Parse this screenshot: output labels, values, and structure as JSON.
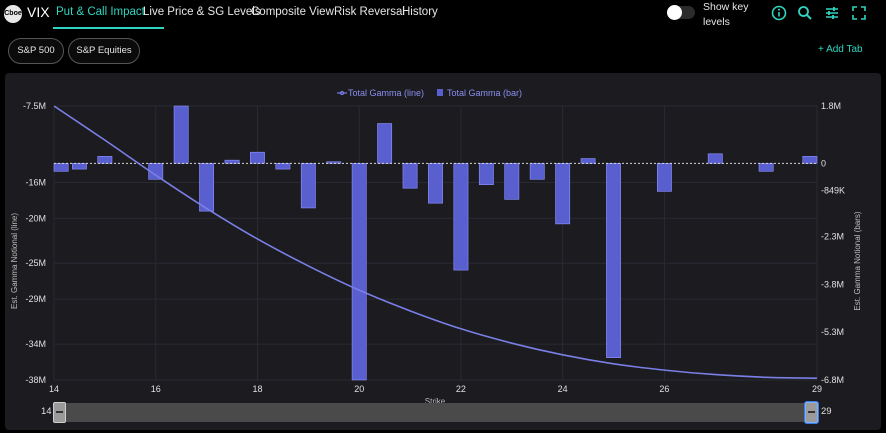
{
  "header": {
    "logo_text": "Cboe",
    "ticker": "VIX",
    "tabs": [
      {
        "label": "Put & Call Impact"
      },
      {
        "label": "Live Price & SG Levels"
      },
      {
        "label": "Composite View"
      },
      {
        "label": "Risk Reversal"
      },
      {
        "label": "History"
      }
    ],
    "active_tab": 0,
    "toggle_label": "Show key levels",
    "toggle_on": false,
    "icons": [
      "info-icon",
      "search-icon",
      "sliders-icon",
      "fullscreen-icon"
    ]
  },
  "filters": {
    "chips": [
      {
        "label": "S&P 500"
      },
      {
        "label": "S&P Equities"
      }
    ],
    "add_tab": "+ Add Tab"
  },
  "colors": {
    "accent": "#2fd5c0",
    "series": "#5a5fcf",
    "line": "#7a7fe6",
    "panel": "#1b1b20"
  },
  "chart_data": {
    "type": "bar+line",
    "legend": [
      {
        "label": "Total Gamma (line)",
        "marker": "line"
      },
      {
        "label": "Total Gamma (bar)",
        "marker": "bar"
      }
    ],
    "legend_position": "top-center",
    "xlabel": "Strike",
    "ylabel_left": "Est. Gamma Notional (line)",
    "ylabel_right": "Est. Gamma Notional (bars)",
    "xlim": [
      14,
      29
    ],
    "x_ticks": [
      {
        "v": 14,
        "label": "14"
      },
      {
        "v": 16,
        "label": "16"
      },
      {
        "v": 18,
        "label": "18"
      },
      {
        "v": 20,
        "label": "20"
      },
      {
        "v": 22,
        "label": "22"
      },
      {
        "v": 24,
        "label": "24"
      },
      {
        "v": 26,
        "label": "26"
      },
      {
        "v": 29,
        "label": "29"
      }
    ],
    "y_left_lim": [
      -38,
      -7.5
    ],
    "y_left_ticks": [
      {
        "v": -7.5,
        "label": "-7.5M"
      },
      {
        "v": -16,
        "label": "-16M"
      },
      {
        "v": -20,
        "label": "-20M"
      },
      {
        "v": -25,
        "label": "-25M"
      },
      {
        "v": -29,
        "label": "-29M"
      },
      {
        "v": -34,
        "label": "-34M"
      },
      {
        "v": -38,
        "label": "-38M"
      }
    ],
    "y_right_lim": [
      -6.8,
      1.8
    ],
    "y_right_ticks": [
      {
        "v": 1.8,
        "label": "1.8M"
      },
      {
        "v": 0,
        "label": "0"
      },
      {
        "v": -0.849,
        "label": "-849K"
      },
      {
        "v": -2.3,
        "label": "-2.3M"
      },
      {
        "v": -3.8,
        "label": "-3.8M"
      },
      {
        "v": -5.3,
        "label": "-5.3M"
      },
      {
        "v": -6.8,
        "label": "-6.8M"
      }
    ],
    "zero_line": 0,
    "bar_width": 0.28,
    "bars": [
      {
        "x": 14.0,
        "y": -0.25
      },
      {
        "x": 14.5,
        "y": -0.18
      },
      {
        "x": 15.0,
        "y": 0.22
      },
      {
        "x": 16.0,
        "y": -0.5
      },
      {
        "x": 16.5,
        "y": 1.8
      },
      {
        "x": 17.0,
        "y": -1.5
      },
      {
        "x": 17.5,
        "y": 0.1
      },
      {
        "x": 18.0,
        "y": 0.35
      },
      {
        "x": 18.5,
        "y": -0.18
      },
      {
        "x": 19.0,
        "y": -1.4
      },
      {
        "x": 19.5,
        "y": 0.05
      },
      {
        "x": 20.0,
        "y": -6.8
      },
      {
        "x": 20.5,
        "y": 1.25
      },
      {
        "x": 21.0,
        "y": -0.78
      },
      {
        "x": 21.5,
        "y": -1.25
      },
      {
        "x": 22.0,
        "y": -3.35
      },
      {
        "x": 22.5,
        "y": -0.67
      },
      {
        "x": 23.0,
        "y": -1.13
      },
      {
        "x": 23.5,
        "y": -0.5
      },
      {
        "x": 24.0,
        "y": -1.9
      },
      {
        "x": 24.5,
        "y": 0.15
      },
      {
        "x": 25.0,
        "y": -6.1
      },
      {
        "x": 26.0,
        "y": -0.88
      },
      {
        "x": 27.0,
        "y": 0.3
      },
      {
        "x": 28.0,
        "y": -0.25
      },
      {
        "x": 29.0,
        "y": 0.22
      }
    ],
    "line": [
      {
        "x": 14,
        "y": -7.5
      },
      {
        "x": 15,
        "y": -11.3
      },
      {
        "x": 16,
        "y": -15.2
      },
      {
        "x": 17,
        "y": -18.9
      },
      {
        "x": 18,
        "y": -22.3
      },
      {
        "x": 19,
        "y": -25.3
      },
      {
        "x": 20,
        "y": -28.0
      },
      {
        "x": 21,
        "y": -30.3
      },
      {
        "x": 22,
        "y": -32.3
      },
      {
        "x": 23,
        "y": -33.9
      },
      {
        "x": 24,
        "y": -35.2
      },
      {
        "x": 25,
        "y": -36.2
      },
      {
        "x": 26,
        "y": -36.9
      },
      {
        "x": 27,
        "y": -37.4
      },
      {
        "x": 28,
        "y": -37.7
      },
      {
        "x": 29,
        "y": -37.8
      }
    ],
    "range_slider": {
      "min_label": "14",
      "max_label": "29",
      "min": 14,
      "max": 29
    }
  }
}
